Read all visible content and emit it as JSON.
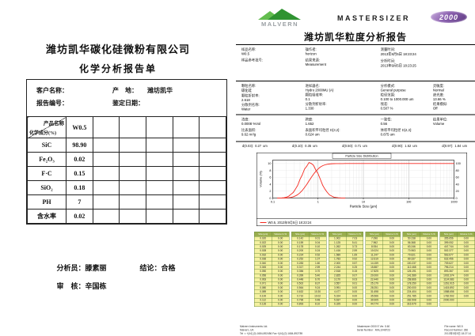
{
  "left_page": {
    "company": "潍坊凯华碳化硅微粉有限公司",
    "title": "化学分析报告单",
    "info": {
      "customer_label": "客户名称：",
      "origin_label": "产    地：",
      "origin_value": "潍坊凯华",
      "report_no_label": "报告编号：",
      "date_label": "鉴定日期："
    },
    "table": {
      "corner_top": "产品名称",
      "corner_bottom": "化学成分(%)",
      "product": "W0.5",
      "empty_columns": 5,
      "rows": [
        {
          "name": "SiC",
          "value": "98.90"
        },
        {
          "name": "Fe₂O₃",
          "value": "0.02"
        },
        {
          "name": "F·C",
          "value": "0.15"
        },
        {
          "name": "SiO₂",
          "value": "0.18"
        },
        {
          "name": "PH",
          "value": "7"
        },
        {
          "name": "含水率",
          "value": "0.02"
        }
      ]
    },
    "footer": {
      "analyst_label": "分析员：",
      "analyst": "滕素丽",
      "conclusion_label": "结论：",
      "conclusion": "合格",
      "reviewer_label": "审　核：",
      "reviewer": "辛国栋"
    }
  },
  "right_page": {
    "brand": {
      "malvern": "MALVERN",
      "instrument": "MASTERSIZER",
      "model": "2000"
    },
    "title": "潍坊凯华粒度分析报告",
    "details_sections": [
      {
        "columns": [
          {
            "pairs": [
              {
                "l": "样品名称:",
                "v": "W0.5"
              },
              {
                "l": "样品参考批号:",
                "v": " "
              }
            ]
          },
          {
            "pairs": [
              {
                "l": "操作者:",
                "v": "horizon"
              },
              {
                "l": "结果来源:",
                "v": "Measurement"
              }
            ]
          },
          {
            "pairs": [
              {
                "l": "测量时间:",
                "v": "2013年9月5日 18:23:24"
              },
              {
                "l": "分析时间:",
                "v": "2013年9月5日 18:23:25"
              }
            ]
          }
        ]
      },
      {
        "columns": [
          {
            "pairs": [
              {
                "l": "颗粒名称:",
                "v": "碳化硅"
              },
              {
                "l": "颗粒折射率:",
                "v": "2.618"
              },
              {
                "l": "分散剂名称:",
                "v": "Water"
              }
            ]
          },
          {
            "pairs": [
              {
                "l": "进样器名:",
                "v": "Hydro 2000MU (A)"
              },
              {
                "l": "颗粒吸收率:",
                "v": "0.1"
              },
              {
                "l": "分散剂折射率:",
                "v": "1.330"
              }
            ]
          },
          {
            "pairs": [
              {
                "l": "分析模式:",
                "v": "General purpose"
              },
              {
                "l": "粒径范围:",
                "v": "0.100 to 1000.000 um"
              },
              {
                "l": "残差:",
                "v": "0.507 %"
              }
            ]
          },
          {
            "pairs": [
              {
                "l": "灵敏度:",
                "v": "Normal"
              },
              {
                "l": "遮光度:",
                "v": "13.66 %"
              },
              {
                "l": "结果模拟:",
                "v": "Off"
              }
            ]
          }
        ]
      },
      {
        "columns": [
          {
            "pairs": [
              {
                "l": "浓度:",
                "v": "0.0008 %Vol"
              },
              {
                "l": "比表面积:",
                "v": "9.62 m²/g"
              }
            ]
          },
          {
            "pairs": [
              {
                "l": "跨度:",
                "v": "1.652"
              },
              {
                "l": "表面积平均粒径 D[3,2]:",
                "v": "0.624 um"
              }
            ]
          },
          {
            "pairs": [
              {
                "l": "一致性:",
                "v": "0.56"
              },
              {
                "l": "体积平均粒径 D[4,3]:",
                "v": "0.875 um"
              }
            ]
          },
          {
            "pairs": [
              {
                "l": "结果单位:",
                "v": "Volume"
              }
            ]
          }
        ]
      }
    ],
    "percentiles": [
      {
        "label": "d(0.03):",
        "value": "0.27",
        "unit": "um"
      },
      {
        "label": "d(0.10):",
        "value": "0.35",
        "unit": "um"
      },
      {
        "label": "d(0.50):",
        "value": "0.71",
        "unit": "um"
      },
      {
        "label": "d(0.90):",
        "value": "1.52",
        "unit": "um"
      },
      {
        "label": "d(0.97):",
        "value": "1.84",
        "unit": "um"
      }
    ],
    "size_table": {
      "size_header": "Size (µm)",
      "vol_header": "Volume In %",
      "columns": 6,
      "rows_per_column": 17,
      "sizes": [
        "0.020",
        "0.022",
        "0.025",
        "0.028",
        "0.032",
        "0.036",
        "0.040",
        "0.045",
        "0.050",
        "0.056",
        "0.063",
        "0.071",
        "0.080",
        "0.089",
        "0.100",
        "0.112",
        "0.126",
        "0.142",
        "0.159",
        "0.178",
        "0.200",
        "0.224",
        "0.252",
        "0.283",
        "0.317",
        "0.356",
        "0.399",
        "0.448",
        "0.502",
        "0.564",
        "0.632",
        "0.710",
        "0.796",
        "0.893",
        "1.002",
        "1.125",
        "1.262",
        "1.416",
        "1.589",
        "1.783",
        "2.000",
        "2.244",
        "2.518",
        "2.825",
        "3.170",
        "3.557",
        "3.991",
        "4.477",
        "5.024",
        "5.637",
        "6.325",
        "7.096",
        "7.962",
        "8.934",
        "10.024",
        "11.247",
        "12.619",
        "14.159",
        "15.887",
        "17.825",
        "20.000",
        "22.440",
        "25.179",
        "28.251",
        "31.698",
        "35.566",
        "39.905",
        "44.774",
        "50.238",
        "56.368",
        "63.246",
        "70.963",
        "79.621",
        "89.337",
        "100.237",
        "112.468",
        "126.191",
        "141.589",
        "158.866",
        "178.250",
        "200.000",
        "224.404",
        "251.785",
        "282.508",
        "316.979",
        "355.656",
        "399.052",
        "447.744",
        "502.377",
        "563.677",
        "632.456",
        "709.627",
        "796.214",
        "893.367",
        "1002.374",
        "1124.683",
        "1261.915",
        "1415.892",
        "1588.656",
        "1782.502",
        "2000.000"
      ],
      "volumes": [
        "0.00",
        "0.00",
        "0.00",
        "0.00",
        "0.00",
        "0.00",
        "0.00",
        "0.00",
        "0.00",
        "0.00",
        "0.00",
        "0.00",
        "0.00",
        "0.00",
        "0.00",
        "0.00",
        "0.00",
        "0.01",
        "0.04",
        "0.10",
        "0.24",
        "0.52",
        "1.07",
        "1.60",
        "2.59",
        "3.70",
        "5.40",
        "6.70",
        "8.37",
        "9.24",
        "10.30",
        "10.02",
        "9.48",
        "8.10",
        "7.03",
        "5.41",
        "3.73",
        "2.59",
        "1.69",
        "0.92",
        "0.57",
        "0.25",
        "0.15",
        "0.07",
        "0.03",
        "0.01",
        "0.00",
        "0.00",
        "0.00",
        "0.00",
        "0.00",
        "0.00",
        "0.00",
        "0.00",
        "0.00",
        "0.00",
        "0.00",
        "0.00",
        "0.00",
        "0.00",
        "0.00",
        "0.00",
        "0.00",
        "0.00",
        "0.00",
        "0.00",
        "0.00",
        "0.00",
        "0.00",
        "0.00",
        "0.00",
        "0.00",
        "0.00",
        "0.00",
        "0.00",
        "0.00",
        "0.00",
        "0.00",
        "0.00",
        "0.00",
        "0.00",
        "0.00",
        "0.00",
        "0.00",
        "0.00",
        "0.00",
        "0.00",
        "0.00",
        "0.00",
        "0.00",
        "0.00",
        "0.00",
        "0.00",
        "0.00",
        "0.00",
        "0.00",
        "0.00",
        "0.00",
        "0.00",
        "0.00",
        ""
      ]
    },
    "footer": {
      "left": [
        "Malvern Instruments Ltd.",
        "Malvern, UK",
        "Tel := +[44] (0) 1684-892456 Fax +[44] (0) 1684-892789"
      ],
      "center": [
        "Mastersizer 2000 E Ver. 5.60",
        "Serial Number : MAL1048723"
      ],
      "right": [
        "File name: W0.5",
        "Record Number: 286",
        "2013年9月5日 18:27:14"
      ]
    }
  },
  "chart_data": {
    "type": "line",
    "title": "Particle Size Distribution",
    "xlabel": "Particle Size (µm)",
    "ylabel": "Volume (%)",
    "x_scale": "log",
    "xlim": [
      0.1,
      1000
    ],
    "ylim_left": [
      0,
      11
    ],
    "left_ticks": [
      0,
      2,
      4,
      6,
      8,
      10
    ],
    "right_ticks": [
      0,
      20,
      40,
      60,
      80,
      100
    ],
    "x_ticks": [
      "0.1",
      "1",
      "10",
      "100",
      "1000"
    ],
    "grid": true,
    "legend": "W0.5, 2013年9月5日 18:23:24",
    "series": [
      {
        "name": "frequency",
        "axis": "left",
        "color": "#f5281e",
        "x": [
          0.126,
          0.142,
          0.159,
          0.178,
          0.2,
          0.224,
          0.252,
          0.283,
          0.317,
          0.356,
          0.399,
          0.448,
          0.502,
          0.564,
          0.632,
          0.71,
          0.796,
          0.893,
          1.002,
          1.125,
          1.262,
          1.416,
          1.589,
          1.783,
          2.0,
          2.244,
          2.518,
          2.825,
          3.17,
          3.557,
          3.991
        ],
        "y": [
          0,
          0.01,
          0.04,
          0.1,
          0.24,
          0.52,
          1.07,
          1.6,
          2.59,
          3.7,
          5.4,
          6.7,
          8.37,
          9.24,
          10.3,
          10.02,
          9.48,
          8.1,
          7.03,
          5.41,
          3.73,
          2.59,
          1.69,
          0.92,
          0.57,
          0.25,
          0.15,
          0.07,
          0.03,
          0.01,
          0
        ]
      },
      {
        "name": "cumulative",
        "axis": "right",
        "color": "#f5281e",
        "x": [
          0.126,
          0.142,
          0.159,
          0.178,
          0.2,
          0.224,
          0.252,
          0.283,
          0.317,
          0.356,
          0.399,
          0.448,
          0.502,
          0.564,
          0.632,
          0.71,
          0.796,
          0.893,
          1.002,
          1.125,
          1.262,
          1.416,
          1.589,
          1.783,
          2.0,
          2.244,
          2.518,
          2.825,
          3.17,
          3.557,
          3.991,
          10,
          1000
        ],
        "y": [
          0,
          0.01,
          0.05,
          0.15,
          0.39,
          0.91,
          1.98,
          3.58,
          6.17,
          9.87,
          15.27,
          21.97,
          30.34,
          39.58,
          49.88,
          59.9,
          69.38,
          77.48,
          84.51,
          89.92,
          93.65,
          96.24,
          97.93,
          98.85,
          99.42,
          99.67,
          99.82,
          99.89,
          99.92,
          99.93,
          100,
          100,
          100
        ]
      }
    ]
  },
  "colors": {
    "curve_red": "#f5281e",
    "malvern_green": "#4aaf3c",
    "oval_purple": "#6b4590",
    "table_cell_yellow": "#f5f1a0",
    "table_header_olive": "#9aae4e",
    "table_border_green": "#6f8f3f"
  }
}
